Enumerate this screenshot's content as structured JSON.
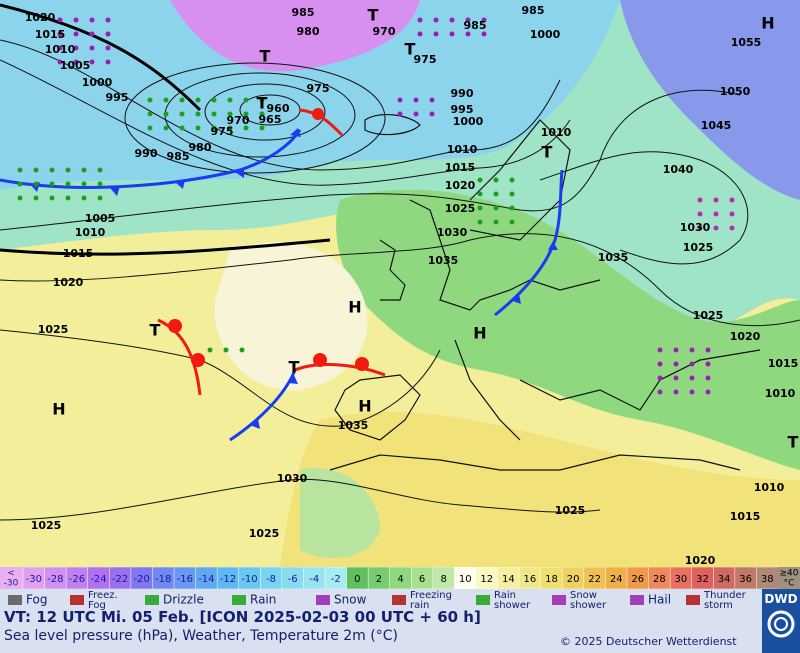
{
  "map": {
    "isobar_labels": [
      1020,
      1015,
      1010,
      1005,
      1000,
      995,
      990,
      985,
      980,
      975,
      970,
      965,
      960,
      975,
      980,
      985,
      970,
      975,
      985,
      985,
      1000,
      990,
      995,
      1000,
      1010,
      1015,
      1020,
      1025,
      1030,
      1035,
      1010,
      1005,
      1010,
      1015,
      1020,
      1025,
      1035,
      1030,
      1025,
      1025,
      1025,
      1020,
      1015,
      1010,
      1010,
      1015,
      1020,
      1025,
      1025,
      1030,
      1035,
      1040,
      1045,
      1050,
      1055
    ],
    "pressure_centers": [
      "T",
      "T",
      "T",
      "T",
      "T",
      "T",
      "T",
      "H",
      "H",
      "H",
      "H",
      "H",
      "T"
    ]
  },
  "color_scale": {
    "low_label": [
      "<",
      "-30"
    ],
    "high_label": [
      "≥40",
      "°C"
    ],
    "values": [
      -30,
      -28,
      -26,
      -24,
      -22,
      -20,
      -18,
      -16,
      -14,
      -12,
      -10,
      -8,
      -6,
      -4,
      -2,
      0,
      2,
      4,
      6,
      8,
      10,
      12,
      14,
      16,
      18,
      20,
      22,
      24,
      26,
      28,
      30,
      32,
      34,
      36,
      38
    ],
    "colors": [
      "#e0a0f0",
      "#d090f0",
      "#c080f0",
      "#b070f0",
      "#9870f0",
      "#8078f0",
      "#7088f0",
      "#6898f0",
      "#60a8f0",
      "#60b8f0",
      "#68c8f0",
      "#78d4f0",
      "#88dcf0",
      "#98e4f0",
      "#a8ecf0",
      "#60c060",
      "#78cc70",
      "#90d880",
      "#a8e090",
      "#c0e8a8",
      "#fffff0",
      "#f8f8c0",
      "#f4f0a0",
      "#f0e888",
      "#f0e070",
      "#f0d060",
      "#f0c050",
      "#f0b048",
      "#f09a48",
      "#f08858",
      "#e87060",
      "#e06060",
      "#d06a60",
      "#c07868",
      "#b08878"
    ],
    "low_color": "#e8b0f0",
    "high_color": "#a09080"
  },
  "legend": [
    [
      "Fog"
    ],
    [
      "Freez.",
      "Fog"
    ],
    [
      "Drizzle"
    ],
    [
      "Rain"
    ],
    [
      "Snow"
    ],
    [
      "Freezing",
      "rain"
    ],
    [
      "Rain",
      "shower"
    ],
    [
      "Snow",
      "shower"
    ],
    [
      "Hail"
    ],
    [
      "Thunder",
      "storm"
    ]
  ],
  "footer": {
    "valid_time": "VT: 12 UTC Mi.  05 Feb. [ICON 2025-02-03  00 UTC + 60 h]",
    "subtitle": "Sea level pressure (hPa), Weather, Temperature 2m (°C)",
    "copyright": "© 2025 Deutscher Wetterdienst",
    "logo": "DWD"
  }
}
